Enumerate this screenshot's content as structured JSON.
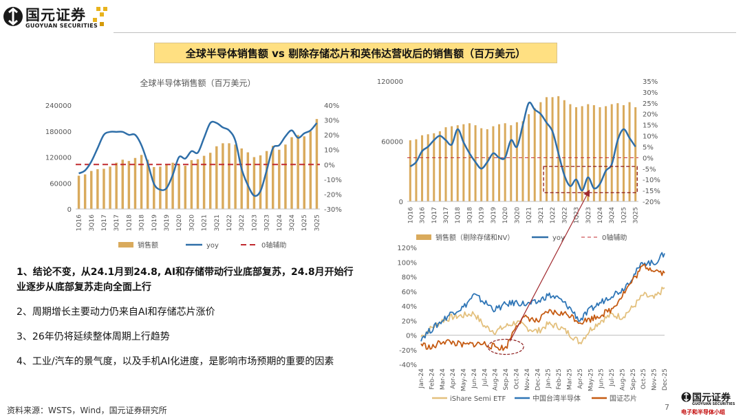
{
  "header": {
    "logo_cn": "国元证券",
    "logo_en": "GUOYUAN SECURITIES",
    "slide_title": "全球半导体销售额 vs 剔除存储芯片和英伟达营收后的销售额（百万美元）"
  },
  "bullets": [
    "1、结论不变，从24.1月到24.8, AI和存储带动行业底部复苏，24.8月开始行业逐步从底部复苏走向全面上行",
    "2、周期增长主要动力仍来自AI和存储芯片涨价",
    "3、26年仍将延续整体周期上行趋势",
    "4、工业/汽车的景气度，以及手机AI化进度，是影响市场预期的重要的因素"
  ],
  "footer": {
    "source": "资料来源：WSTS，Wind，国元证券研究所",
    "page": "7",
    "logo_cn": "国元证券",
    "logo_en": "GUOYUAN SECURITIES",
    "logo_tag": "电子和半导体小组"
  },
  "colors": {
    "bar": "#d9aa5c",
    "yoy": "#2e6ea8",
    "ref": "#c0282d",
    "ishare": "#e3c07d",
    "taiwan": "#2e75b6",
    "guozheng": "#c55a11"
  },
  "chart_data": [
    {
      "type": "bar",
      "title": "全球半导体销售额（百万美元）",
      "quarters": [
        "1Q16",
        "2Q16",
        "3Q16",
        "4Q16",
        "1Q17",
        "2Q17",
        "3Q17",
        "4Q17",
        "1Q18",
        "2Q18",
        "3Q18",
        "4Q18",
        "1Q19",
        "2Q19",
        "3Q19",
        "4Q19",
        "1Q20",
        "2Q20",
        "3Q20",
        "4Q20",
        "1Q21",
        "2Q21",
        "3Q21",
        "4Q21",
        "1Q22",
        "2Q22",
        "3Q22",
        "4Q22",
        "1Q23",
        "2Q23",
        "3Q23",
        "4Q23",
        "1Q24",
        "2Q24",
        "3Q24",
        "4Q24",
        "1Q25",
        "2Q25",
        "3Q25"
      ],
      "tick_labels": [
        "1Q16",
        "3Q16",
        "1Q17",
        "3Q17",
        "1Q18",
        "3Q18",
        "1Q19",
        "3Q19",
        "1Q20",
        "3Q20",
        "1Q21",
        "3Q21",
        "1Q22",
        "3Q22",
        "1Q23",
        "3Q23",
        "1Q24",
        "3Q24",
        "1Q25",
        "3Q25"
      ],
      "series": [
        {
          "name": "销售额",
          "type": "bar",
          "axis": "left",
          "values": [
            77000,
            80000,
            88000,
            92000,
            93000,
            98000,
            107000,
            114000,
            111000,
            118000,
            125000,
            114000,
            97000,
            98000,
            104000,
            107000,
            104000,
            100000,
            113000,
            115000,
            123000,
            130000,
            145000,
            152000,
            152000,
            149000,
            140000,
            131000,
            120000,
            124000,
            134000,
            146000,
            137000,
            149000,
            166000,
            171000,
            168000,
            180000,
            208000
          ]
        },
        {
          "name": "yoy",
          "type": "line",
          "axis": "right",
          "values": [
            -6,
            -4,
            2,
            11,
            20,
            22,
            22,
            22,
            20,
            20,
            13,
            1,
            -13,
            -17,
            -16,
            -7,
            5,
            4,
            9,
            8,
            18,
            28,
            28,
            25,
            23,
            16,
            -3,
            -14,
            -21,
            -18,
            -4,
            11,
            13,
            19,
            23,
            18,
            21,
            23,
            28
          ]
        },
        {
          "name": "0轴辅助",
          "type": "line",
          "axis": "right",
          "values": [
            0
          ]
        }
      ],
      "y_left": {
        "ticks": [
          "0",
          "60000",
          "120000",
          "180000",
          "240000"
        ],
        "range": [
          0,
          240000
        ]
      },
      "y_right": {
        "ticks": [
          "-30%",
          "-20%",
          "-10%",
          "0%",
          "10%",
          "20%",
          "30%",
          "40%"
        ],
        "range": [
          -30,
          40
        ]
      },
      "legend": [
        "销售额",
        "yoy",
        "0轴辅助"
      ]
    },
    {
      "type": "bar",
      "title": "",
      "quarters": [
        "1Q16",
        "2Q16",
        "3Q16",
        "4Q16",
        "1Q17",
        "2Q17",
        "3Q17",
        "4Q17",
        "1Q18",
        "2Q18",
        "3Q18",
        "4Q18",
        "1Q19",
        "2Q19",
        "3Q19",
        "4Q19",
        "1Q20",
        "2Q20",
        "3Q20",
        "4Q20",
        "1Q21",
        "2Q21",
        "3Q21",
        "4Q21",
        "1Q22",
        "2Q22",
        "3Q22",
        "4Q22",
        "1Q23",
        "2Q23",
        "3Q23",
        "4Q23",
        "1Q24",
        "2Q24",
        "3Q24",
        "4Q24",
        "1Q25",
        "2Q25",
        "3Q25"
      ],
      "tick_labels": [
        "1Q16",
        "3Q16",
        "1Q17",
        "3Q17",
        "1Q18",
        "3Q18",
        "1Q19",
        "3Q19",
        "1Q20",
        "3Q20",
        "1Q21",
        "3Q21",
        "1Q22",
        "3Q22",
        "1Q23",
        "3Q23",
        "1Q24",
        "3Q24",
        "1Q25",
        "3Q25"
      ],
      "series": [
        {
          "name": "销售额（剔除存储和NV）",
          "type": "bar",
          "axis": "left",
          "values": [
            61000,
            62000,
            66000,
            67000,
            68000,
            70000,
            74000,
            75000,
            76000,
            77000,
            78000,
            76000,
            73000,
            72000,
            75000,
            77000,
            78000,
            76000,
            79000,
            80000,
            87000,
            93000,
            99000,
            104000,
            104000,
            105000,
            101000,
            97000,
            94000,
            95000,
            97000,
            96000,
            94000,
            95000,
            97000,
            98000,
            96000,
            99000,
            94000
          ]
        },
        {
          "name": "yoy",
          "type": "line",
          "axis": "right",
          "values": [
            -4,
            -2,
            3,
            5,
            8,
            10,
            8,
            6,
            13,
            7,
            2,
            -2,
            -5,
            -2,
            2,
            0,
            0,
            8,
            5,
            15,
            25,
            22,
            20,
            16,
            12,
            2,
            -8,
            -13,
            -10,
            -15,
            -9,
            -14,
            -12,
            -6,
            -3,
            8,
            13,
            9,
            5
          ]
        },
        {
          "name": "0轴辅助",
          "type": "line",
          "axis": "right",
          "values": [
            0
          ]
        }
      ],
      "y_left": {
        "ticks": [
          "0",
          "60000",
          "120000"
        ],
        "range": [
          0,
          120000
        ]
      },
      "y_right": {
        "ticks": [
          "-20%",
          "-15%",
          "-10%",
          "-5%",
          "0%",
          "5%",
          "10%",
          "15%",
          "20%",
          "25%",
          "30%",
          "35%"
        ],
        "range": [
          -20,
          35
        ]
      },
      "legend": [
        "销售额（剔除存储和NV）",
        "yoy",
        "0轴辅助"
      ]
    },
    {
      "type": "line",
      "title": "",
      "x": [
        "Jan-24",
        "Feb-24",
        "Mar-24",
        "Apr-24",
        "May-24",
        "Jun-24",
        "Jul-24",
        "Aug-24",
        "Sep-24",
        "Oct-24",
        "Nov-24",
        "Dec-24",
        "Jan-25",
        "Feb-25",
        "Mar-25",
        "Apr-25",
        "May-25",
        "Jun-25",
        "Jul-25",
        "Aug-25",
        "Sep-25",
        "Oct-25",
        "Nov-25",
        "Dec-25"
      ],
      "series": [
        {
          "name": "iShare Semi ETF",
          "values": [
            -2,
            10,
            20,
            25,
            27,
            30,
            12,
            5,
            12,
            18,
            10,
            5,
            15,
            12,
            2,
            -10,
            8,
            20,
            28,
            25,
            38,
            55,
            50,
            65
          ]
        },
        {
          "name": "中国台湾半导体",
          "values": [
            -4,
            8,
            20,
            32,
            38,
            55,
            45,
            35,
            42,
            45,
            42,
            45,
            55,
            50,
            38,
            20,
            35,
            45,
            55,
            62,
            80,
            100,
            98,
            112
          ]
        },
        {
          "name": "国证芯片",
          "values": [
            -12,
            -18,
            -8,
            -10,
            -14,
            -12,
            -12,
            -16,
            -18,
            15,
            25,
            18,
            32,
            30,
            28,
            18,
            22,
            28,
            35,
            55,
            75,
            95,
            90,
            85
          ]
        }
      ],
      "y": {
        "ticks": [
          "-40%",
          "-20%",
          "0%",
          "20%",
          "40%",
          "60%",
          "80%",
          "100%",
          "120%"
        ],
        "range": [
          -40,
          120
        ]
      },
      "legend": [
        "iShare Semi ETF",
        "中国台湾半导体",
        "国证芯片"
      ]
    }
  ]
}
